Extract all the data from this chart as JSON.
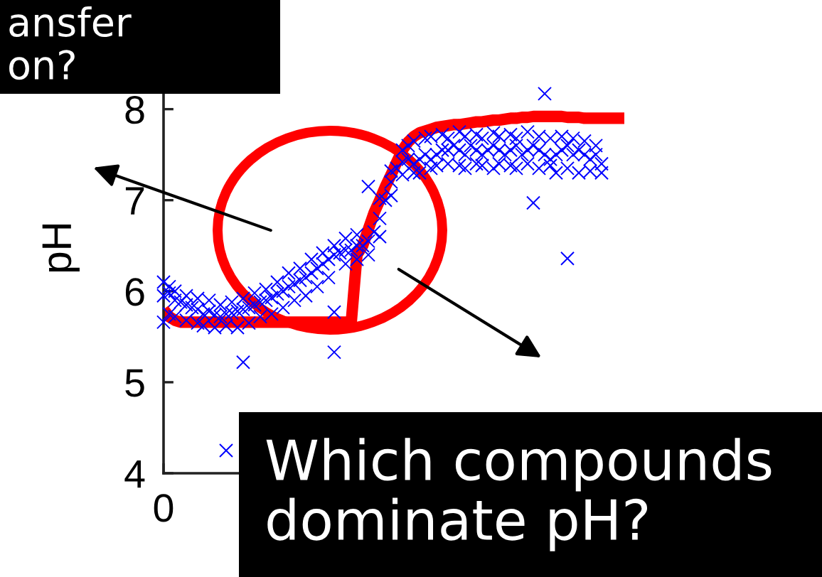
{
  "chart_data": {
    "type": "scatter",
    "ylabel": "pH",
    "marker": "cross",
    "categories": [
      "0",
      null,
      null,
      null,
      null,
      null,
      null,
      null,
      null,
      null,
      null,
      null,
      null,
      null,
      null,
      null,
      null,
      null,
      null,
      null,
      null,
      null,
      null,
      null,
      null,
      null,
      null,
      null,
      null,
      null,
      null,
      null,
      null,
      null,
      null,
      null,
      null,
      null,
      null,
      null,
      null,
      null,
      null,
      null,
      null,
      null,
      null,
      null,
      null,
      null,
      null,
      null,
      null,
      null,
      null,
      null,
      null,
      null,
      null,
      null,
      null,
      null,
      null,
      null,
      null,
      null,
      null,
      null,
      null,
      null,
      null,
      null,
      null,
      null,
      null,
      null,
      null,
      null,
      null,
      null,
      null,
      null
    ],
    "ylim": [
      4,
      8.2
    ],
    "yticks": [
      4,
      5,
      6,
      7,
      8
    ],
    "series": [
      {
        "type": "line",
        "color": "#ff0000",
        "marker": "none",
        "line_style": "solid",
        "values": [
          5.8,
          5.72,
          5.68,
          5.66,
          5.66,
          5.66,
          5.66,
          5.66,
          5.66,
          5.66,
          5.66,
          5.66,
          5.66,
          5.66,
          5.66,
          5.66,
          5.66,
          5.66,
          5.66,
          5.66,
          5.66,
          5.66,
          5.66,
          5.66,
          5.66,
          5.66,
          5.66,
          5.66,
          5.66,
          5.66,
          5.66,
          5.66,
          5.66,
          5.66,
          6.4,
          6.5,
          6.68,
          6.86,
          7.0,
          7.15,
          7.28,
          7.42,
          7.55,
          7.64,
          7.7,
          7.74,
          7.76,
          7.78,
          7.8,
          7.81,
          7.82,
          7.83,
          7.83,
          7.84,
          7.85,
          7.86,
          7.86,
          7.87,
          7.88,
          7.88,
          7.89,
          7.9,
          7.9,
          7.91,
          7.91,
          7.92,
          7.92,
          7.92,
          7.92,
          7.92,
          7.92,
          7.91,
          7.91,
          7.91,
          7.9,
          7.9,
          7.9,
          7.9,
          7.9,
          7.9,
          7.9,
          7.9
        ]
      },
      {
        "color": "#0000ff",
        "values": [
          5.95,
          5.98,
          5.9,
          5.88,
          5.85,
          5.82,
          5.8,
          5.75,
          5.78,
          5.74,
          5.72,
          5.75,
          5.76,
          5.78,
          5.8,
          5.82,
          5.85,
          5.88,
          5.9,
          5.93,
          5.97,
          6.0,
          6.05,
          6.08,
          6.12,
          6.15,
          6.2,
          6.25,
          6.3,
          6.35,
          6.4,
          6.42,
          6.45,
          6.45,
          6.5,
          6.5,
          6.55,
          6.65,
          6.8,
          7.0,
          7.2,
          7.35,
          7.42,
          7.45,
          7.4,
          7.45,
          7.5,
          7.45,
          7.5,
          7.55,
          7.55,
          7.6,
          7.55,
          7.5,
          7.6,
          7.55,
          7.5,
          7.55,
          7.6,
          7.55,
          7.5,
          7.55,
          7.6,
          7.5,
          7.55,
          7.6,
          7.55,
          7.5,
          7.45,
          7.5,
          7.55,
          7.6,
          7.5,
          7.55,
          7.5,
          7.45,
          7.5,
          7.4,
          null,
          null,
          null,
          null
        ]
      },
      {
        "color": "#0000ff",
        "values": [
          6.1,
          6.05,
          6.0,
          null,
          5.95,
          null,
          5.92,
          null,
          5.9,
          null,
          5.85,
          null,
          5.88,
          null,
          5.92,
          null,
          5.98,
          null,
          6.02,
          null,
          6.1,
          null,
          6.2,
          null,
          6.25,
          null,
          6.35,
          null,
          6.42,
          null,
          6.5,
          null,
          6.58,
          null,
          6.62,
          null,
          7.15,
          null,
          7.02,
          null,
          7.32,
          null,
          7.55,
          7.6,
          7.65,
          null,
          7.68,
          7.7,
          null,
          7.72,
          7.68,
          null,
          7.75,
          7.7,
          null,
          7.72,
          7.68,
          null,
          7.74,
          7.7,
          null,
          7.72,
          7.68,
          null,
          7.75,
          null,
          7.7,
          null,
          7.68,
          null,
          7.7,
          null,
          7.68,
          null,
          7.65,
          null,
          7.6,
          null,
          null,
          null,
          null,
          null
        ]
      },
      {
        "color": "#0000ff",
        "values": [
          5.66,
          5.75,
          5.72,
          null,
          5.68,
          null,
          5.65,
          5.62,
          null,
          5.6,
          null,
          5.62,
          null,
          5.6,
          null,
          5.65,
          null,
          5.72,
          null,
          5.75,
          null,
          5.82,
          null,
          5.9,
          null,
          5.95,
          null,
          6.05,
          null,
          6.15,
          5.77,
          null,
          6.3,
          null,
          6.35,
          null,
          6.4,
          null,
          6.6,
          null,
          7.05,
          null,
          7.28,
          null,
          7.3,
          7.3,
          null,
          7.35,
          7.38,
          null,
          7.4,
          null,
          7.38,
          7.35,
          null,
          7.4,
          7.38,
          null,
          7.35,
          7.4,
          null,
          7.38,
          7.35,
          null,
          7.4,
          null,
          7.35,
          null,
          7.38,
          7.3,
          null,
          7.35,
          null,
          7.3,
          null,
          7.32,
          null,
          7.3,
          null,
          null,
          null,
          null
        ]
      },
      {
        "color": "#0000ff",
        "values": [
          null,
          null,
          null,
          null,
          null,
          null,
          null,
          null,
          null,
          null,
          null,
          4.25,
          null,
          null,
          5.22,
          null,
          null,
          null,
          null,
          null,
          null,
          null,
          null,
          null,
          null,
          null,
          null,
          null,
          null,
          null,
          5.33,
          null,
          null,
          null,
          null,
          null,
          null,
          null,
          null,
          null,
          null,
          null,
          null,
          null,
          null,
          null,
          null,
          null,
          null,
          null,
          null,
          null,
          null,
          null,
          null,
          null,
          null,
          null,
          null,
          null,
          null,
          null,
          null,
          null,
          null,
          6.97,
          null,
          8.17,
          null,
          null,
          null,
          6.36,
          null,
          null,
          null,
          null,
          null,
          null,
          null,
          null,
          null,
          null
        ]
      }
    ],
    "annotations": [
      "ansfer\non?",
      "Which compounds\ndominate pH?"
    ]
  }
}
